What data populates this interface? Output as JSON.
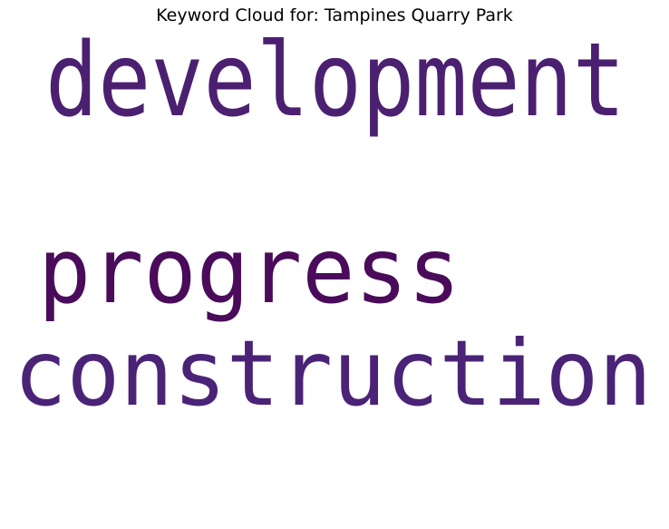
{
  "title": "Keyword Cloud for: Tampines Quarry Park",
  "words": [
    {
      "text": "development",
      "color": "#4b2070"
    },
    {
      "text": "progress",
      "color": "#4a0b5a"
    },
    {
      "text": "construction",
      "color": "#4a2377"
    }
  ]
}
